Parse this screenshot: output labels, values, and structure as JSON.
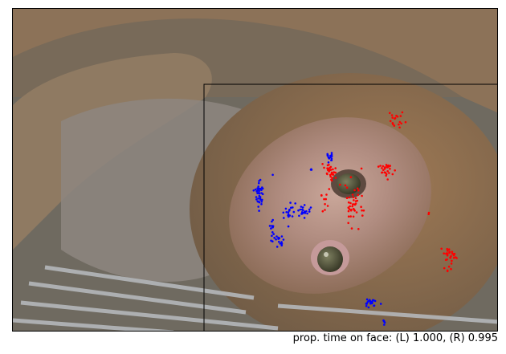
{
  "caption": "prop. time on face: (L) 1.000, (R) 0.995",
  "image": {
    "subject": "monkey-face-photo",
    "colors": {
      "left_gaze": "#0000ff",
      "right_gaze": "#ff0000",
      "face_box": "#000000"
    }
  }
}
